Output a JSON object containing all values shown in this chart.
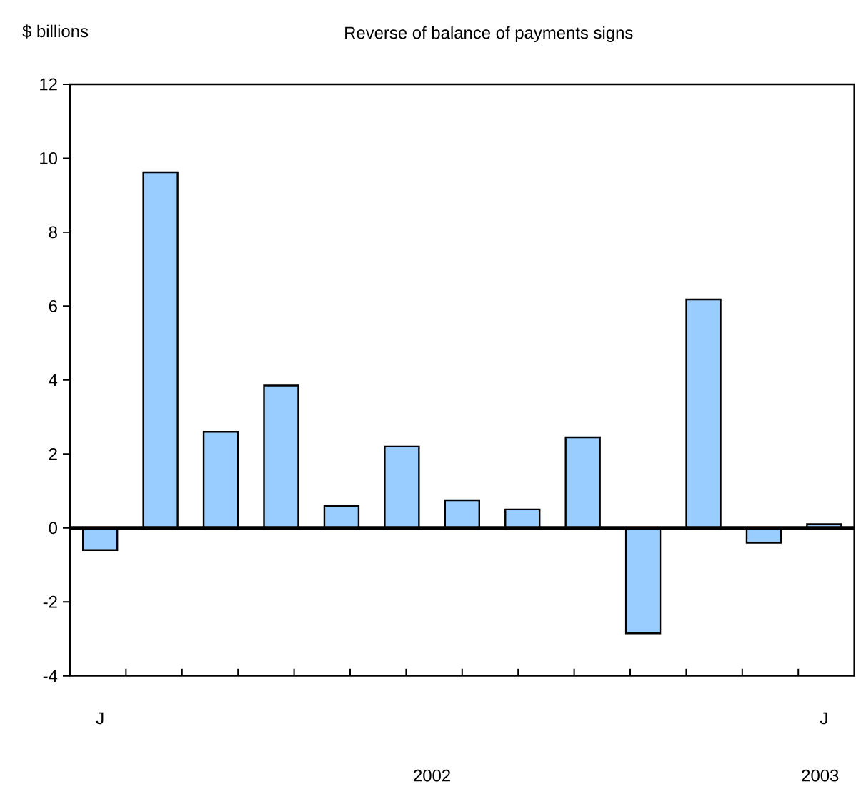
{
  "chart_data": {
    "type": "bar",
    "title": "Reverse of balance of payments signs",
    "ylabel": "$ billions",
    "categories": [
      "J",
      null,
      null,
      null,
      null,
      null,
      null,
      null,
      null,
      null,
      null,
      null,
      "J"
    ],
    "values": [
      -0.6,
      9.62,
      2.6,
      3.85,
      0.6,
      2.2,
      0.75,
      0.5,
      2.45,
      -2.85,
      6.18,
      -0.4,
      0.1
    ],
    "color": "#99ccff",
    "ylim": [
      -4,
      12
    ],
    "yticks": [
      -4,
      -2,
      0,
      2,
      4,
      6,
      8,
      10,
      12
    ],
    "annotations": [
      "2002",
      "2003"
    ]
  }
}
